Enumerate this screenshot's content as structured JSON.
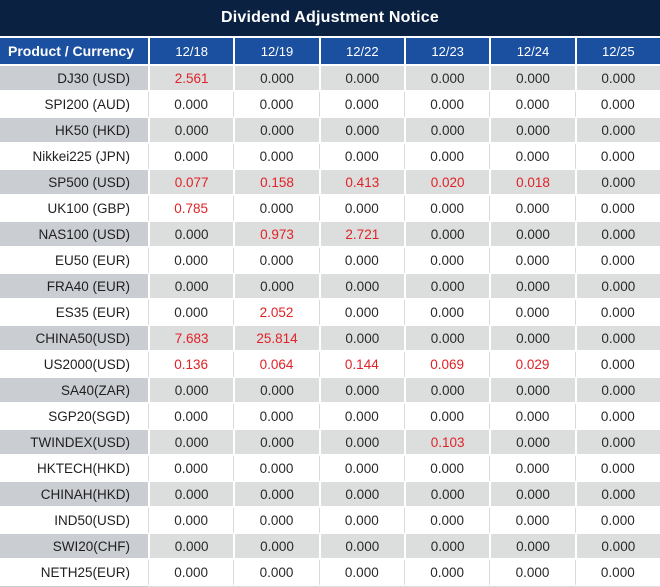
{
  "title": "Dividend Adjustment Notice",
  "colors": {
    "title_bg": "#0a2142",
    "header_bg": "#1b4fa0",
    "header_text": "#ffffff",
    "alt_row_label_bg": "#cacdd2",
    "alt_row_cell_bg": "#dcdddd",
    "plain_row_bg": "#ffffff",
    "value_text": "#292929",
    "highlight_value_text": "#e02227"
  },
  "table": {
    "header": {
      "product_col": "Product / Currency",
      "dates": [
        "12/18",
        "12/19",
        "12/22",
        "12/23",
        "12/24",
        "12/25"
      ]
    },
    "rows": [
      {
        "label": "DJ30 (USD)",
        "values": [
          "2.561",
          "0.000",
          "0.000",
          "0.000",
          "0.000",
          "0.000"
        ]
      },
      {
        "label": "SPI200 (AUD)",
        "values": [
          "0.000",
          "0.000",
          "0.000",
          "0.000",
          "0.000",
          "0.000"
        ]
      },
      {
        "label": "HK50 (HKD)",
        "values": [
          "0.000",
          "0.000",
          "0.000",
          "0.000",
          "0.000",
          "0.000"
        ]
      },
      {
        "label": "Nikkei225 (JPN)",
        "values": [
          "0.000",
          "0.000",
          "0.000",
          "0.000",
          "0.000",
          "0.000"
        ]
      },
      {
        "label": "SP500 (USD)",
        "values": [
          "0.077",
          "0.158",
          "0.413",
          "0.020",
          "0.018",
          "0.000"
        ]
      },
      {
        "label": "UK100 (GBP)",
        "values": [
          "0.785",
          "0.000",
          "0.000",
          "0.000",
          "0.000",
          "0.000"
        ]
      },
      {
        "label": "NAS100 (USD)",
        "values": [
          "0.000",
          "0.973",
          "2.721",
          "0.000",
          "0.000",
          "0.000"
        ]
      },
      {
        "label": "EU50 (EUR)",
        "values": [
          "0.000",
          "0.000",
          "0.000",
          "0.000",
          "0.000",
          "0.000"
        ]
      },
      {
        "label": "FRA40 (EUR)",
        "values": [
          "0.000",
          "0.000",
          "0.000",
          "0.000",
          "0.000",
          "0.000"
        ]
      },
      {
        "label": "ES35 (EUR)",
        "values": [
          "0.000",
          "2.052",
          "0.000",
          "0.000",
          "0.000",
          "0.000"
        ]
      },
      {
        "label": "CHINA50(USD)",
        "values": [
          "7.683",
          "25.814",
          "0.000",
          "0.000",
          "0.000",
          "0.000"
        ]
      },
      {
        "label": "US2000(USD)",
        "values": [
          "0.136",
          "0.064",
          "0.144",
          "0.069",
          "0.029",
          "0.000"
        ]
      },
      {
        "label": "SA40(ZAR)",
        "values": [
          "0.000",
          "0.000",
          "0.000",
          "0.000",
          "0.000",
          "0.000"
        ]
      },
      {
        "label": "SGP20(SGD)",
        "values": [
          "0.000",
          "0.000",
          "0.000",
          "0.000",
          "0.000",
          "0.000"
        ]
      },
      {
        "label": "TWINDEX(USD)",
        "values": [
          "0.000",
          "0.000",
          "0.000",
          "0.103",
          "0.000",
          "0.000"
        ]
      },
      {
        "label": "HKTECH(HKD)",
        "values": [
          "0.000",
          "0.000",
          "0.000",
          "0.000",
          "0.000",
          "0.000"
        ]
      },
      {
        "label": "CHINAH(HKD)",
        "values": [
          "0.000",
          "0.000",
          "0.000",
          "0.000",
          "0.000",
          "0.000"
        ]
      },
      {
        "label": "IND50(USD)",
        "values": [
          "0.000",
          "0.000",
          "0.000",
          "0.000",
          "0.000",
          "0.000"
        ]
      },
      {
        "label": "SWI20(CHF)",
        "values": [
          "0.000",
          "0.000",
          "0.000",
          "0.000",
          "0.000",
          "0.000"
        ]
      },
      {
        "label": "NETH25(EUR)",
        "values": [
          "0.000",
          "0.000",
          "0.000",
          "0.000",
          "0.000",
          "0.000"
        ]
      }
    ]
  }
}
